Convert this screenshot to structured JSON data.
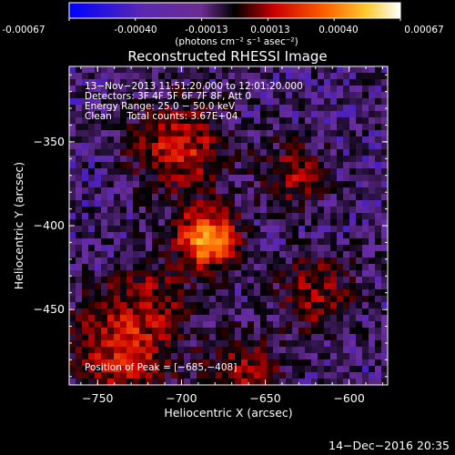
{
  "colorbar": {
    "ticks": [
      "-0.00067",
      "-0.00040",
      "-0.00013",
      "0.00013",
      "0.00040",
      "0.00067"
    ],
    "min": -0.00067,
    "max": 0.00067,
    "unit": "(photons cm⁻² s⁻¹ asec⁻²)"
  },
  "chart_data": {
    "type": "heatmap",
    "title": "Reconstructed RHESSI Image",
    "xlabel": "Heliocentric X (arcsec)",
    "ylabel": "Heliocentric Y (arcsec)",
    "xlim": [
      -767,
      -577
    ],
    "ylim": [
      -495,
      -305
    ],
    "xticks": [
      {
        "value": -750,
        "label": "−750"
      },
      {
        "value": -700,
        "label": "−700"
      },
      {
        "value": -650,
        "label": "−650"
      },
      {
        "value": -600,
        "label": "−600"
      }
    ],
    "yticks": [
      {
        "value": -350,
        "label": "−350"
      },
      {
        "value": -400,
        "label": "−400"
      },
      {
        "value": -450,
        "label": "−450"
      }
    ],
    "annotations": [
      "13−Nov−2013 11:51:20.000 to 12:01:20.000",
      "Detectors: 3F 4F 5F 6F 7F 8F, Att 0",
      "Energy Range: 25.0 − 50.0 keV",
      "Clean     Total counts: 3.67E+04"
    ],
    "peak_label": "Position of Peak = [−685,−408]",
    "peak": {
      "x": -685,
      "y": -408
    },
    "colormap": [
      "#0000ff",
      "#6a2da0",
      "#000000",
      "#cc0000",
      "#ff6600",
      "#ffcc33",
      "#ffffff"
    ]
  },
  "footer_date": "14−Dec−2016 20:35"
}
